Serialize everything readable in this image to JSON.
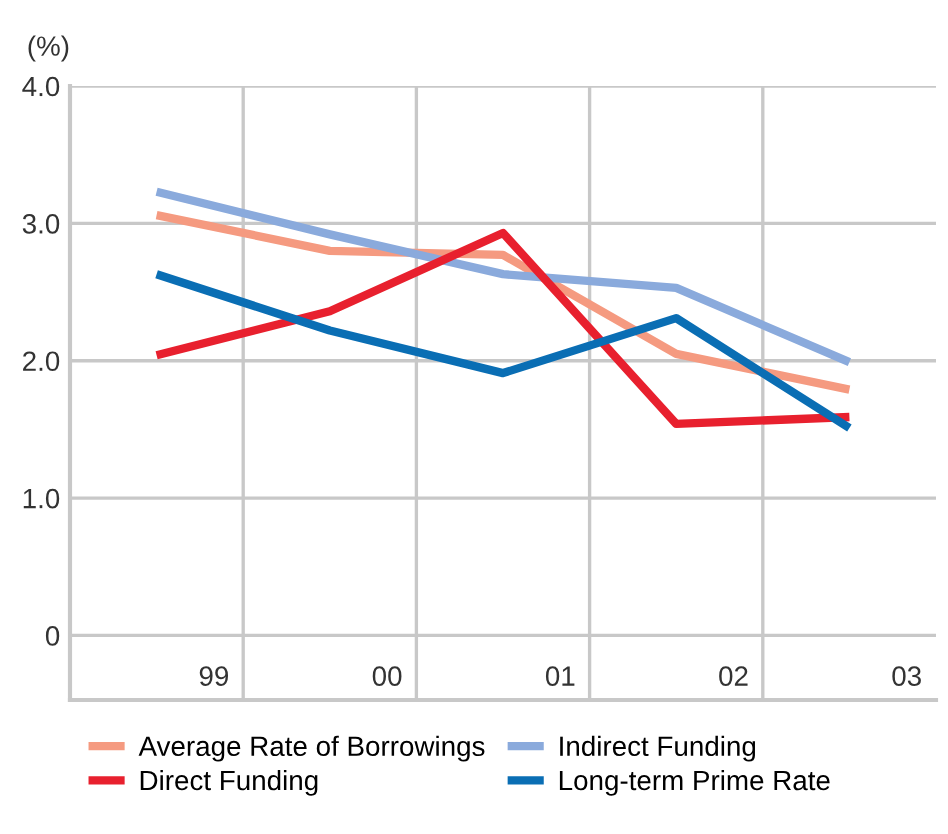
{
  "chart_data": {
    "type": "line",
    "ylabel": "(%)",
    "categories": [
      "99",
      "00",
      "01",
      "02",
      "03"
    ],
    "series": [
      {
        "name": "Average Rate of Borrowings",
        "color": "#f59a80",
        "values": [
          3.06,
          2.8,
          2.77,
          2.05,
          1.79
        ]
      },
      {
        "name": "Indirect Funding",
        "color": "#8aaadc",
        "values": [
          3.23,
          2.92,
          2.63,
          2.53,
          1.99
        ]
      },
      {
        "name": "Direct Funding",
        "color": "#e8202e",
        "values": [
          2.04,
          2.36,
          2.93,
          1.54,
          1.59
        ]
      },
      {
        "name": "Long-term Prime Rate",
        "color": "#0a6eb4",
        "values": [
          2.63,
          2.22,
          1.91,
          2.31,
          1.51
        ]
      }
    ],
    "ylim": [
      -0.47,
      4.0
    ],
    "yticks": [
      0,
      {
        "value": 1.0,
        "label": "1.0"
      },
      {
        "value": 2.0,
        "label": "2.0"
      },
      {
        "value": 3.0,
        "label": "3.0"
      },
      {
        "value": 4.0,
        "label": "4.0"
      }
    ],
    "grid": true,
    "legend": "bottom",
    "marker": "none",
    "line_style": "solid"
  }
}
